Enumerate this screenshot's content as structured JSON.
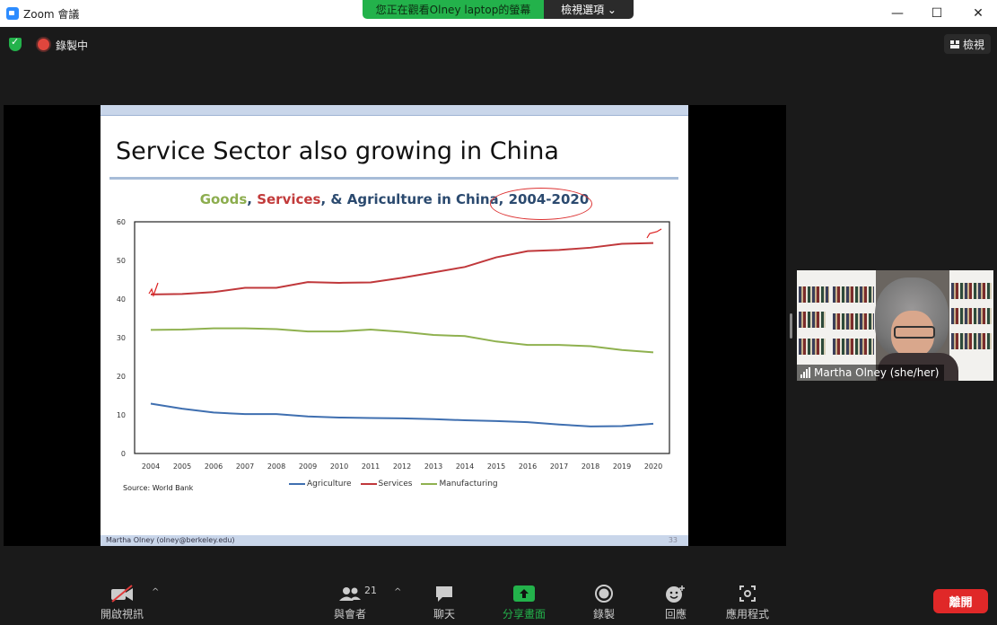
{
  "window": {
    "title": "Zoom 會議",
    "minimize": "—",
    "maximize": "☐",
    "close": "✕"
  },
  "share_banner": {
    "message": "您正在觀看Olney  laptop的螢幕",
    "options_label": "檢視選項 ⌄"
  },
  "meeting_bar": {
    "recording_label": "錄製中",
    "view_label": "檢視"
  },
  "slide": {
    "title": "Service Sector also growing in China",
    "chart_title_parts": {
      "goods": "Goods",
      "sep1": ", ",
      "services": "Services",
      "rest": ", & Agriculture in China, ",
      "years": "2004-2020"
    },
    "source": "Source: World Bank",
    "footer": "Martha Olney (olney@berkeley.edu)",
    "page": "33"
  },
  "chart_data": {
    "type": "line",
    "title": "Goods, Services, & Agriculture in China, 2004-2020",
    "x": [
      2004,
      2005,
      2006,
      2007,
      2008,
      2009,
      2010,
      2011,
      2012,
      2013,
      2014,
      2015,
      2016,
      2017,
      2018,
      2019,
      2020
    ],
    "ylim": [
      0,
      60
    ],
    "yticks": [
      0,
      10,
      20,
      30,
      40,
      50,
      60
    ],
    "ytick_labels": [
      "0",
      "10",
      "20",
      "30",
      "40",
      "50",
      "60"
    ],
    "series": [
      {
        "name": "Agriculture",
        "color": "#3f6fb0",
        "values": [
          12.9,
          11.6,
          10.6,
          10.2,
          10.2,
          9.6,
          9.3,
          9.2,
          9.1,
          8.9,
          8.6,
          8.4,
          8.1,
          7.5,
          7.0,
          7.1,
          7.7
        ]
      },
      {
        "name": "Services",
        "color": "#c0383b",
        "values": [
          41.2,
          41.3,
          41.8,
          42.9,
          42.9,
          44.4,
          44.2,
          44.3,
          45.5,
          46.9,
          48.3,
          50.8,
          52.4,
          52.7,
          53.3,
          54.3,
          54.5
        ]
      },
      {
        "name": "Manufacturing",
        "color": "#8fb14f",
        "values": [
          32.0,
          32.1,
          32.4,
          32.4,
          32.2,
          31.6,
          31.6,
          32.1,
          31.5,
          30.7,
          30.4,
          29.0,
          28.1,
          28.1,
          27.8,
          26.8,
          26.2
        ]
      }
    ],
    "grid": false,
    "legend": "bottom"
  },
  "participant": {
    "name": "Martha Olney (she/her)"
  },
  "toolbar": {
    "video": "開啟視訊",
    "participants": "與會者",
    "participants_count": "21",
    "chat": "聊天",
    "share": "分享畫面",
    "record": "錄製",
    "reactions": "回應",
    "apps": "應用程式",
    "leave": "離開"
  },
  "colors": {
    "share_green": "#23b24b",
    "leave_red": "#e02828",
    "toolbar_bg": "#1a1a1a"
  }
}
